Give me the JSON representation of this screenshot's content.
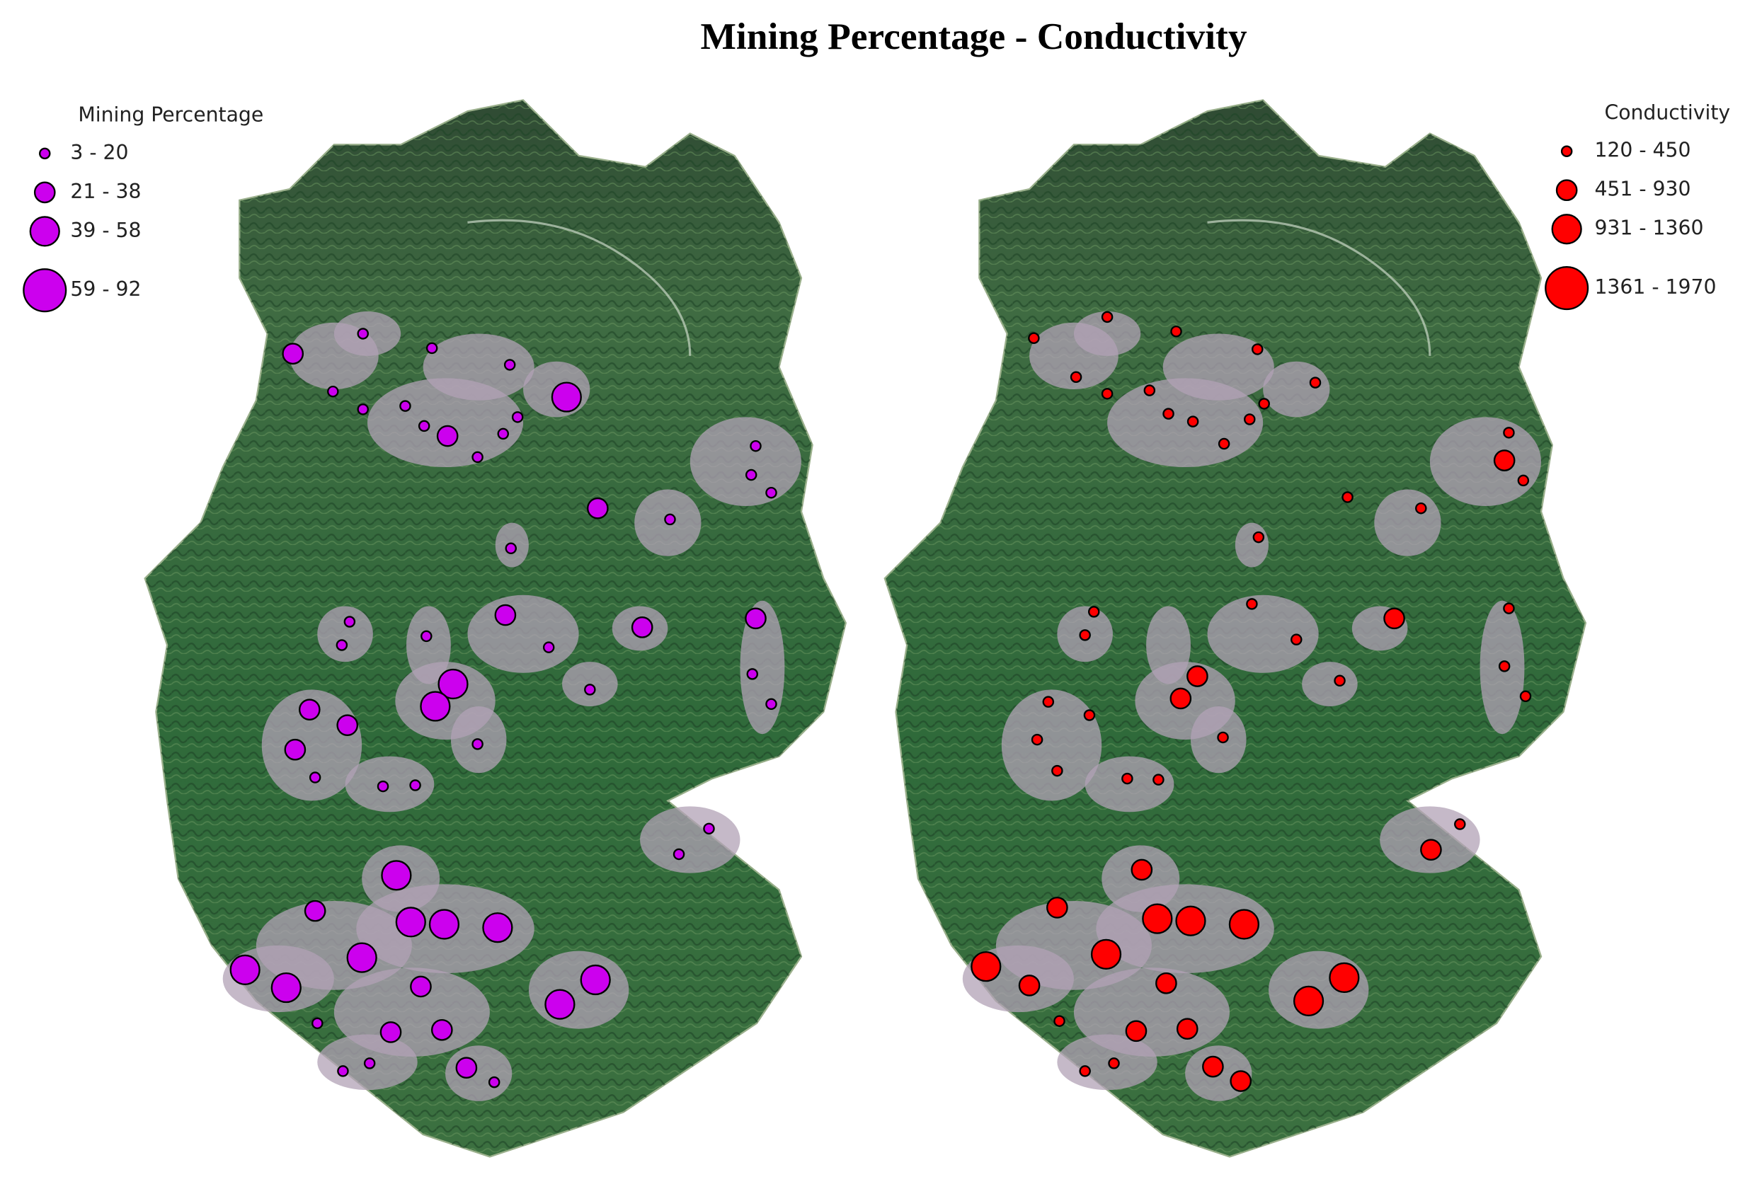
{
  "title": "Mining Percentage - Conductivity",
  "maps": [
    {
      "legend": {
        "title": "Mining Percentage",
        "classes": [
          "3 - 20",
          "21 - 38",
          "39 - 58",
          "59 - 92"
        ]
      },
      "color": "#cc00ee"
    },
    {
      "legend": {
        "title": "Conductivity",
        "classes": [
          "120 - 450",
          "451 - 930",
          "931 - 1360",
          "1361 - 1970"
        ]
      },
      "color": "#ff0000"
    }
  ]
}
